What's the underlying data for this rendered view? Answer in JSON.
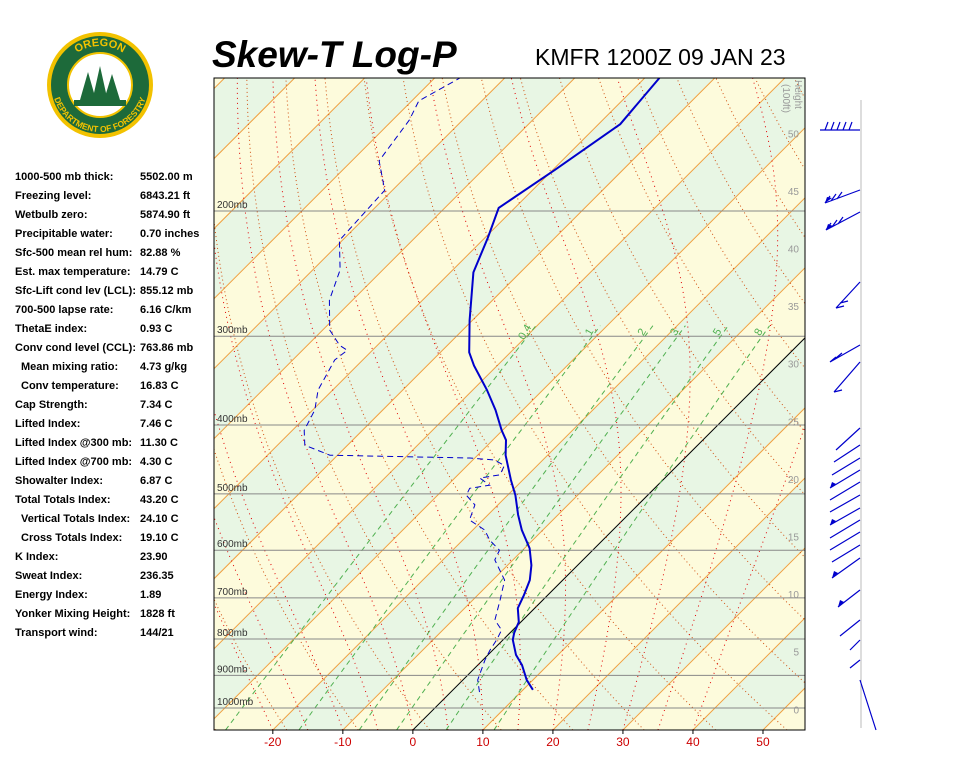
{
  "header": {
    "title": "Skew-T Log-P",
    "station": "KMFR 1200Z 09 JAN 23"
  },
  "logo": {
    "top": "OREGON",
    "bottom": "DEPARTMENT OF FORESTRY"
  },
  "indices": [
    [
      "1000-500 mb thick:",
      "5502.00 m"
    ],
    [
      "Freezing level:",
      "6843.21 ft"
    ],
    [
      "Wetbulb zero:",
      "5874.90 ft"
    ],
    [
      "Precipitable water:",
      "0.70 inches"
    ],
    [
      "Sfc-500 mean rel hum:",
      "82.88 %"
    ],
    [
      "Est. max temperature:",
      "14.79 C"
    ],
    [
      "Sfc-Lift cond lev (LCL):",
      "855.12 mb"
    ],
    [
      "700-500 lapse rate:",
      "6.16 C/km"
    ],
    [
      "ThetaE index:",
      "0.93 C"
    ],
    [
      "Conv cond level (CCL):",
      "763.86 mb"
    ],
    [
      "Mean mixing ratio:",
      "4.73 g/kg"
    ],
    [
      "Conv temperature:",
      "16.83 C"
    ],
    [
      "Cap Strength:",
      "7.34 C"
    ],
    [
      "Lifted Index:",
      "7.46 C"
    ],
    [
      "Lifted Index @300 mb:",
      "11.30 C"
    ],
    [
      "Lifted Index @700 mb:",
      "4.30 C"
    ],
    [
      "Showalter Index:",
      "6.87 C"
    ],
    [
      "Total Totals Index:",
      "43.20 C"
    ],
    [
      "Vertical Totals Index:",
      "24.10 C"
    ],
    [
      "Cross Totals Index:",
      "19.10 C"
    ],
    [
      "K Index:",
      "23.90"
    ],
    [
      "Sweat Index:",
      "236.35"
    ],
    [
      "Energy Index:",
      "1.89"
    ],
    [
      "Yonker Mixing Height:",
      "1828 ft"
    ],
    [
      "Transport wind:",
      "144/21"
    ]
  ],
  "chart_data": {
    "type": "skewt",
    "xlim": [
      -28.4,
      56
    ],
    "xticks": [
      -20,
      -10,
      0,
      10,
      20,
      30,
      40,
      50
    ],
    "ylim": [
      1074,
      130
    ],
    "yticks": [
      {
        "value": 200,
        "label": "200mb"
      },
      {
        "value": 300,
        "label": "300mb"
      },
      {
        "value": 400,
        "label": "400mb"
      },
      {
        "value": 500,
        "label": "500mb"
      },
      {
        "value": 600,
        "label": "600mb"
      },
      {
        "value": 700,
        "label": "700mb"
      },
      {
        "value": 800,
        "label": "800mb"
      },
      {
        "value": 900,
        "label": "900mb"
      },
      {
        "value": 1000,
        "label": "1000mb"
      }
    ],
    "height_label": "Height",
    "height_unit": "(100ft)",
    "height_lim": [
      -1.8,
      54.8
    ],
    "height_ticks": [
      0,
      5,
      10,
      15,
      20,
      25,
      30,
      35,
      40,
      45,
      50
    ],
    "mixing_ratios": [
      0.4,
      1,
      2,
      3,
      5,
      8
    ],
    "series": [
      {
        "color": "#0000cc",
        "dashed": false,
        "pressure": [
          943,
          913,
          870,
          842,
          802,
          784,
          757,
          724,
          694,
          661,
          630,
          596,
          562,
          535,
          502,
          478,
          441,
          420,
          407,
          381,
          357,
          330,
          316,
          285,
          244,
          218,
          198,
          175,
          151,
          130
        ],
        "values": [
          11.4,
          9.1,
          6.3,
          4.0,
          1.4,
          0.6,
          -0.3,
          -2.4,
          -3.4,
          -4.7,
          -6.6,
          -9.3,
          -13.0,
          -15.7,
          -18.9,
          -21.7,
          -26.0,
          -28.1,
          -30.1,
          -33.9,
          -38.0,
          -43.3,
          -45.9,
          -50.4,
          -56.7,
          -59.6,
          -62.3,
          -59.7,
          -56.9,
          -57.9
        ]
      },
      {
        "color": "#0000cc",
        "dashed": true,
        "pressure": [
          950,
          913,
          856,
          829,
          802,
          777,
          752,
          705,
          661,
          619,
          600,
          581,
          562,
          544,
          518,
          502,
          491,
          486,
          475,
          470,
          456,
          448,
          445,
          441,
          427,
          407,
          381,
          357,
          324,
          314,
          309,
          294,
          267,
          242,
          220,
          187,
          170,
          149,
          140,
          130
        ],
        "values": [
          4.1,
          2.1,
          0.3,
          -0.4,
          -0.9,
          -1.6,
          -4.0,
          -6.1,
          -8.3,
          -12.6,
          -13.3,
          -16.1,
          -18.3,
          -21.9,
          -23.3,
          -25.9,
          -26.4,
          -24.0,
          -26.4,
          -24.0,
          -24.7,
          -26.9,
          -30.7,
          -51.1,
          -56.1,
          -58.3,
          -59.7,
          -62.1,
          -64.0,
          -63.6,
          -65.4,
          -69.0,
          -73.3,
          -76.1,
          -80.4,
          -81.1,
          -86.1,
          -87.6,
          -89.0,
          -86.4
        ]
      }
    ]
  }
}
